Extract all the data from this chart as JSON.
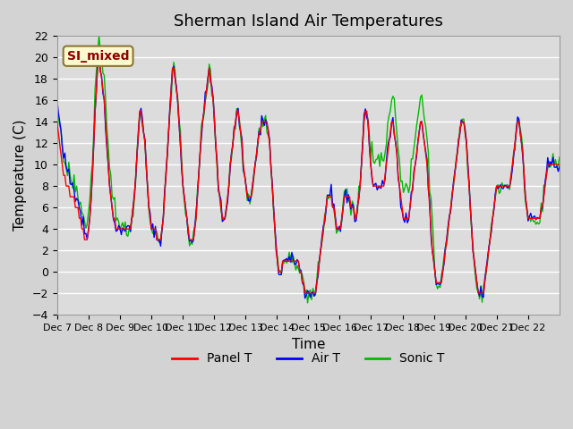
{
  "title": "Sherman Island Air Temperatures",
  "xlabel": "Time",
  "ylabel": "Temperature (C)",
  "ylim": [
    -4,
    22
  ],
  "yticks": [
    -4,
    -2,
    0,
    2,
    4,
    6,
    8,
    10,
    12,
    14,
    16,
    18,
    20,
    22
  ],
  "xtick_labels": [
    "Dec 7",
    "Dec 8",
    "Dec 9",
    "Dec 10",
    "Dec 11",
    "Dec 12",
    "Dec 13",
    "Dec 14",
    "Dec 15",
    "Dec 16",
    "Dec 17",
    "Dec 18",
    "Dec 19",
    "Dec 20",
    "Dec 21",
    "Dec 22"
  ],
  "annotation_text": "SI_mixed",
  "annotation_color": "#8B0000",
  "annotation_bg": "#FFFACD",
  "line_colors": {
    "panel": "#FF0000",
    "air": "#0000FF",
    "sonic": "#00BB00"
  },
  "legend_labels": [
    "Panel T",
    "Air T",
    "Sonic T"
  ],
  "fig_bg": "#D3D3D3",
  "plot_bg": "#DCDCDC",
  "grid_color": "#FFFFFF",
  "title_fontsize": 13,
  "axis_fontsize": 11,
  "tick_fontsize": 9
}
